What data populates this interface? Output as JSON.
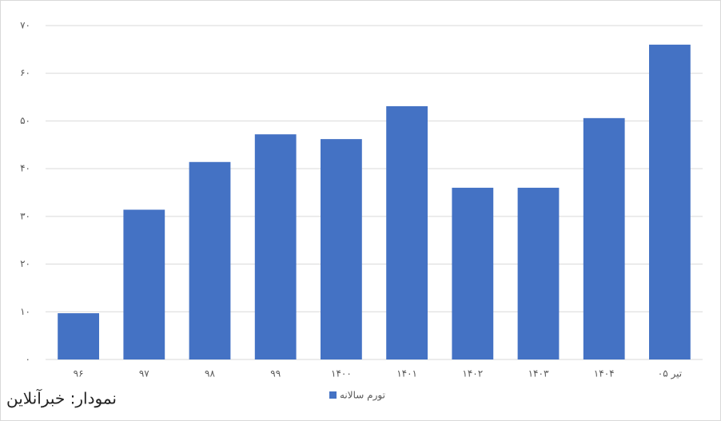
{
  "chart_data": {
    "type": "bar",
    "categories": [
      "۹۶",
      "۹۷",
      "۹۸",
      "۹۹",
      "۱۴۰۰",
      "۱۴۰۱",
      "۱۴۰۲",
      "۱۴۰۳",
      "۱۴۰۴",
      "تیر ۰۵"
    ],
    "series": [
      {
        "name": "تورم سالانه",
        "color": "#4472c4",
        "values": [
          9.7,
          31.4,
          41.4,
          47.2,
          46.2,
          53.1,
          36,
          36,
          50.6,
          66
        ]
      }
    ],
    "ylim": [
      0,
      70
    ],
    "yticks": [
      {
        "value": 0,
        "label": "۰"
      },
      {
        "value": 10,
        "label": "۱۰"
      },
      {
        "value": 20,
        "label": "۲۰"
      },
      {
        "value": 30,
        "label": "۳۰"
      },
      {
        "value": 40,
        "label": "۴۰"
      },
      {
        "value": 50,
        "label": "۵۰"
      },
      {
        "value": 60,
        "label": "۶۰"
      },
      {
        "value": 70,
        "label": "۷۰"
      }
    ],
    "grid": true,
    "legend": "bottom",
    "source": "نمودار: خبرآنلاین"
  }
}
